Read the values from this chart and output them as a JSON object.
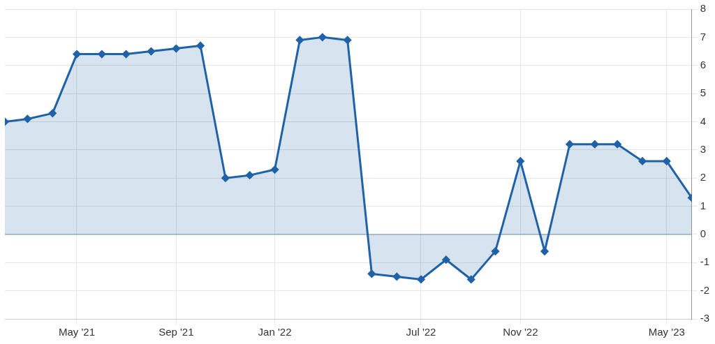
{
  "chart_data": {
    "type": "area",
    "x": [
      "2021-02-01",
      "2021-03-01",
      "2021-04-01",
      "2021-05-01",
      "2021-06-01",
      "2021-07-01",
      "2021-08-01",
      "2021-09-01",
      "2021-10-01",
      "2021-11-01",
      "2021-12-01",
      "2022-01-01",
      "2022-02-01",
      "2022-03-01",
      "2022-04-01",
      "2022-05-01",
      "2022-06-01",
      "2022-07-01",
      "2022-08-01",
      "2022-09-01",
      "2022-10-01",
      "2022-11-01",
      "2022-12-01",
      "2023-01-01",
      "2023-02-01",
      "2023-03-01",
      "2023-04-01",
      "2023-05-01",
      "2023-06-01"
    ],
    "series": [
      {
        "color": "#1f62a8",
        "values": [
          4.0,
          4.1,
          4.3,
          6.4,
          6.4,
          6.4,
          6.5,
          6.6,
          6.7,
          2.0,
          2.1,
          2.3,
          6.9,
          7.0,
          6.9,
          -1.4,
          -1.5,
          -1.6,
          -0.9,
          -1.6,
          -0.6,
          2.6,
          -0.6,
          3.2,
          3.2,
          3.2,
          2.6,
          2.6,
          1.3
        ]
      }
    ],
    "xlim": [
      "2021-02-01",
      "2023-06-01"
    ],
    "xticks": [
      {
        "value": "2021-05-01",
        "label": "May '21"
      },
      {
        "value": "2021-09-01",
        "label": "Sep '21"
      },
      {
        "value": "2022-01-01",
        "label": "Jan '22"
      },
      {
        "value": "2022-07-01",
        "label": "Jul '22"
      },
      {
        "value": "2022-11-01",
        "label": "Nov '22"
      },
      {
        "value": "2023-05-01",
        "label": "May '23"
      }
    ],
    "ylim": [
      -3,
      8
    ],
    "yticks": [
      -3,
      -2,
      -1,
      0,
      1,
      2,
      3,
      4,
      5,
      6,
      7,
      8
    ],
    "ref_lines": [
      {
        "axis": "y",
        "value": 0,
        "color": "#a7b2bf"
      }
    ],
    "grid": true,
    "legend": false,
    "marker": "diamond",
    "line_style": "solid"
  }
}
